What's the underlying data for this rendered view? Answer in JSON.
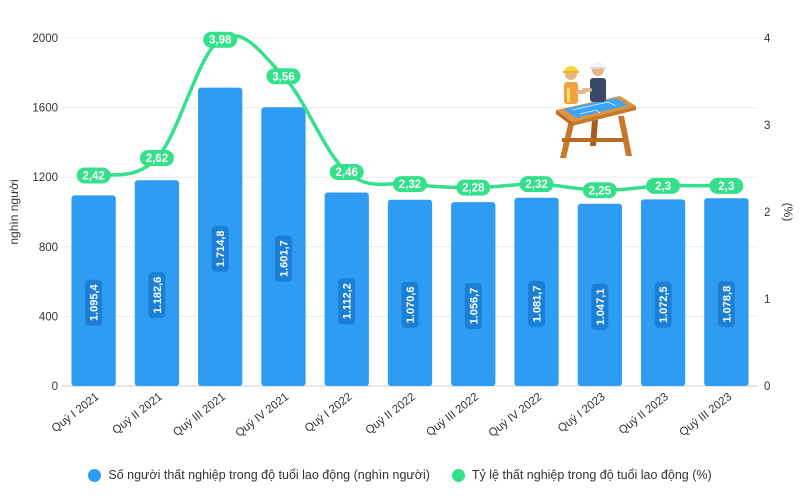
{
  "chart_data": {
    "type": "bar-line",
    "categories": [
      "Quý I 2021",
      "Quý II 2021",
      "Quý III 2021",
      "Quý IV 2021",
      "Quý I 2022",
      "Quý II 2022",
      "Quý III 2022",
      "Quý IV 2022",
      "Quý I 2023",
      "Quý II 2023",
      "Quý III 2023"
    ],
    "series": [
      {
        "name": "Số người thất nghiệp trong độ tuổi lao động (nghìn người)",
        "type": "bar",
        "axis": "left",
        "values": [
          1095.4,
          1182.6,
          1714.8,
          1601.7,
          1112.2,
          1070.6,
          1056.7,
          1081.7,
          1047.1,
          1072.5,
          1078.8
        ],
        "labels": [
          "1.095,4",
          "1.182,6",
          "1.714,8",
          "1.601,7",
          "1.112,2",
          "1.070,6",
          "1.056,7",
          "1.081,7",
          "1.047,1",
          "1.072,5",
          "1.078,8"
        ]
      },
      {
        "name": "Tỷ lệ thất nghiệp trong độ tuổi lao động (%)",
        "type": "line",
        "axis": "right",
        "values": [
          2.42,
          2.62,
          3.98,
          3.56,
          2.46,
          2.32,
          2.28,
          2.32,
          2.25,
          2.3,
          2.3
        ],
        "labels": [
          "2,42",
          "2,62",
          "3,98",
          "3,56",
          "2,46",
          "2,32",
          "2,28",
          "2,32",
          "2,25",
          "2,3",
          "2,3"
        ]
      }
    ],
    "ylabel": "nghìn người",
    "y2label": "(%)",
    "ylim": [
      0,
      2000
    ],
    "y2lim": [
      0,
      4
    ],
    "yticks": [
      "0",
      "400",
      "800",
      "1200",
      "1600",
      "2000"
    ],
    "y2ticks": [
      "0",
      "1",
      "2",
      "3",
      "4"
    ],
    "grid": true,
    "legend_position": "bottom",
    "colors": {
      "bar": "#2f9cf4",
      "line": "#34e08a"
    }
  },
  "illustration": {
    "icon": "workers-with-blueprint-icon"
  }
}
